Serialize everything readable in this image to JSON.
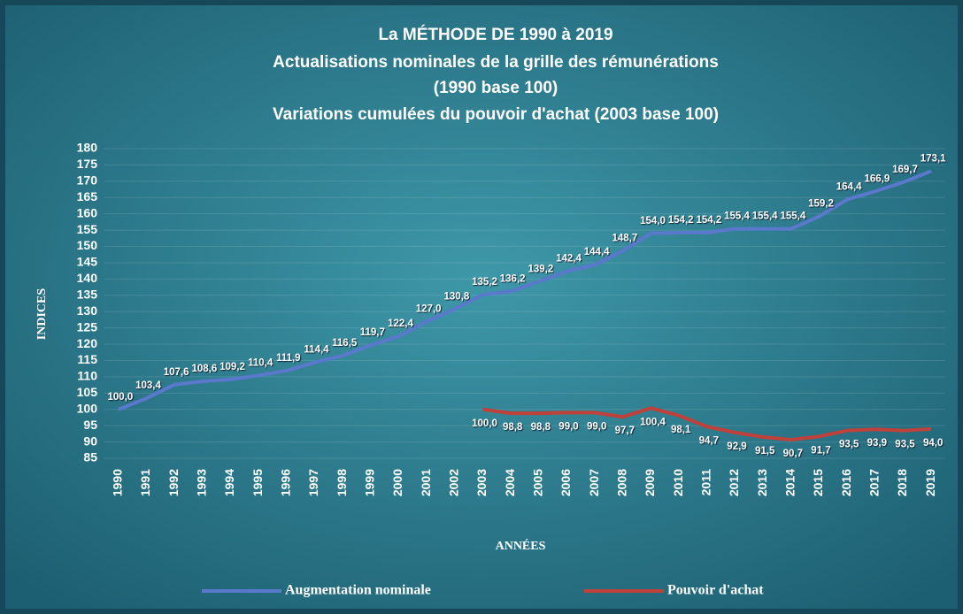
{
  "chart_data": {
    "type": "line",
    "title": "La MÉTHODE DE 1990 à 2019",
    "subtitle": [
      "Actualisations nominales  de la grille des rémunérations",
      "(1990 base 100)",
      "Variations cumulées du pouvoir d'achat (2003 base 100)"
    ],
    "y_label": "INDICES",
    "x_label": "ANNÉES",
    "categories": [
      "1990",
      "1991",
      "1992",
      "1993",
      "1994",
      "1995",
      "1996",
      "1997",
      "1998",
      "1999",
      "2000",
      "2001",
      "2002",
      "2003",
      "2004",
      "2005",
      "2006",
      "2007",
      "2008",
      "2009",
      "2010",
      "2011",
      "2012",
      "2013",
      "2014",
      "2015",
      "2016",
      "2017",
      "2018",
      "2019"
    ],
    "series": [
      {
        "name": "Augmentation nominale",
        "color": "#5a78cc",
        "values": [
          100.0,
          103.4,
          107.6,
          108.6,
          109.2,
          110.4,
          111.9,
          114.4,
          116.5,
          119.7,
          122.4,
          127.0,
          130.8,
          135.2,
          136.2,
          139.2,
          142.4,
          144.4,
          148.7,
          154.0,
          154.2,
          154.2,
          155.4,
          155.4,
          155.4,
          159.2,
          164.4,
          166.9,
          169.7,
          173.1
        ],
        "value_labels": [
          "100,0",
          "103,4",
          "107,6",
          "108,6",
          "109,2",
          "110,4",
          "111,9",
          "114,4",
          "116,5",
          "119,7",
          "122,4",
          "127,0",
          "130,8",
          "135,2",
          "136,2",
          "139,2",
          "142,4",
          "144,4",
          "148,7",
          "154,0",
          "154,2",
          "154,2",
          "155,4",
          "155,4",
          "155,4",
          "159,2",
          "164,4",
          "166,9",
          "169,7",
          "173,1"
        ]
      },
      {
        "name": "Pouvoir d'achat",
        "color": "#c0403a",
        "values": [
          null,
          null,
          null,
          null,
          null,
          null,
          null,
          null,
          null,
          null,
          null,
          null,
          null,
          100.0,
          98.8,
          98.8,
          99.0,
          99.0,
          97.7,
          100.4,
          98.1,
          94.7,
          92.9,
          91.5,
          90.7,
          91.7,
          93.5,
          93.9,
          93.5,
          94.0
        ],
        "value_labels": [
          null,
          null,
          null,
          null,
          null,
          null,
          null,
          null,
          null,
          null,
          null,
          null,
          null,
          "100,0",
          "98,8",
          "98,8",
          "99,0",
          "99,0",
          "97,7",
          "100,4",
          "98,1",
          "94,7",
          "92,9",
          "91,5",
          "90,7",
          "91,7",
          "93,5",
          "93,9",
          "93,5",
          "94,0"
        ]
      }
    ],
    "ylim": [
      85,
      180
    ],
    "yticks": [
      85,
      90,
      95,
      100,
      105,
      110,
      115,
      120,
      125,
      130,
      135,
      140,
      145,
      150,
      155,
      160,
      165,
      170,
      175,
      180
    ],
    "grid": true,
    "legend": "bottom"
  }
}
